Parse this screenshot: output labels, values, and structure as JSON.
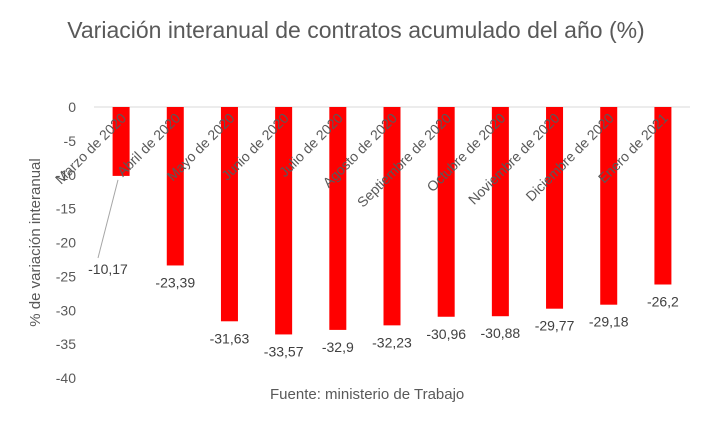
{
  "chart_data": {
    "type": "bar",
    "title": "Variación interanual de contratos  acumulado del año (%)",
    "ylabel": "% de variación interanual",
    "xlabel": "",
    "source": "Fuente: ministerio de Trabajo",
    "categories": [
      "Marzo de 2020",
      "Abril de 2020",
      "Mayo de 2020",
      "Junio de 2020",
      "Julio de 2020",
      "Agosto de 2020",
      "Septiembre de 2020",
      "Octubre de 2020",
      "Noviembre de 2020",
      "Diciembre de 2020",
      "Enero de 2021"
    ],
    "values": [
      -10.17,
      -23.39,
      -31.63,
      -33.57,
      -32.9,
      -32.23,
      -30.96,
      -30.88,
      -29.77,
      -29.18,
      -26.2
    ],
    "value_labels": [
      "-10,17",
      "-23,39",
      "-31,63",
      "-33,57",
      "-32,9",
      "-32,23",
      "-30,96",
      "-30,88",
      "-29,77",
      "-29,18",
      "-26,2"
    ],
    "ylim": [
      -40,
      0
    ],
    "yticks": [
      0,
      -5,
      -10,
      -15,
      -20,
      -25,
      -30,
      -35,
      -40
    ],
    "bar_color": "#ff0000",
    "grid": false,
    "legend": "none"
  }
}
